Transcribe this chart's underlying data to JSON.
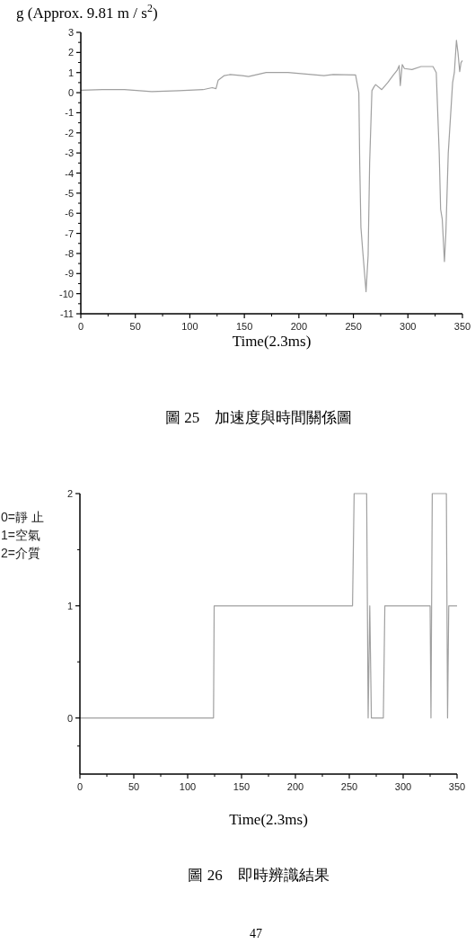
{
  "chart_data": [
    {
      "type": "line",
      "title": "圖 25　加速度與時間關係圖",
      "xlabel": "Time(2.3ms)",
      "ylabel": "g (Approx. 9.81 m / s$^{2}$)",
      "xlim": [
        0,
        350
      ],
      "ylim": [
        -11,
        3
      ],
      "xticks": [
        0,
        50,
        100,
        150,
        200,
        250,
        300,
        350
      ],
      "yticks": [
        -11,
        -10,
        -9,
        -8,
        -7,
        -6,
        -5,
        -4,
        -3,
        -2,
        -1,
        0,
        1,
        2,
        3
      ],
      "grid": false,
      "marker": "none",
      "line_style": "solid",
      "series": [
        {
          "color": "#a0a0a0",
          "x": [
            0,
            20,
            40,
            65,
            90,
            112,
            120.5,
            124,
            126,
            131.6,
            137,
            148,
            153.8,
            170,
            190,
            223,
            231.5,
            252,
            255,
            255.8,
            256.9,
            258.6,
            261.6,
            263.5,
            264.9,
            267,
            269,
            270.4,
            276,
            281.5,
            287,
            290,
            292,
            293,
            294.8,
            296.8,
            303.7,
            312,
            323,
            326,
            328.7,
            330,
            331.5,
            333.5,
            334.8,
            337,
            341,
            342.6,
            344.5,
            345.9,
            347.5,
            348.7,
            350
          ],
          "values": [
            0.12,
            0.15,
            0.15,
            0.05,
            0.1,
            0.15,
            0.25,
            0.2,
            0.62,
            0.85,
            0.9,
            0.85,
            0.8,
            1.0,
            1.0,
            0.85,
            0.9,
            0.88,
            0,
            -3.5,
            -6.7,
            -7.9,
            -9.9,
            -8.1,
            -3.5,
            0.1,
            0.3,
            0.4,
            0.15,
            0.5,
            0.9,
            1.1,
            1.35,
            0.35,
            1.4,
            1.2,
            1.15,
            1.3,
            1.3,
            1.0,
            -3,
            -5.8,
            -6.3,
            -8.4,
            -7,
            -3,
            0.5,
            1.0,
            2.6,
            2.0,
            1.05,
            1.5,
            1.6
          ]
        }
      ]
    },
    {
      "type": "line",
      "title": "圖 26　即時辨識結果",
      "xlabel": "Time(2.3ms)",
      "xlim": [
        0,
        350
      ],
      "ylim": [
        -0.5,
        2
      ],
      "xticks": [
        0,
        50,
        100,
        150,
        200,
        250,
        300,
        350
      ],
      "yticks": [
        0,
        1,
        2
      ],
      "grid": false,
      "marker": "none",
      "line_style": "solid",
      "annotations": [
        "0=靜 止",
        "1=空氣",
        "2=介質",
        "47"
      ],
      "series": [
        {
          "color": "#a0a0a0",
          "x": [
            0,
            124,
            124.6,
            253,
            254.5,
            266.1,
            267.5,
            269,
            270.5,
            281.6,
            283,
            325,
            325.8,
            327,
            340.1,
            341.2,
            342.3,
            350
          ],
          "values": [
            0,
            0,
            1,
            1,
            2,
            2,
            0,
            1,
            0,
            0,
            1,
            1,
            0,
            2,
            2,
            0,
            1,
            1
          ]
        }
      ]
    }
  ]
}
